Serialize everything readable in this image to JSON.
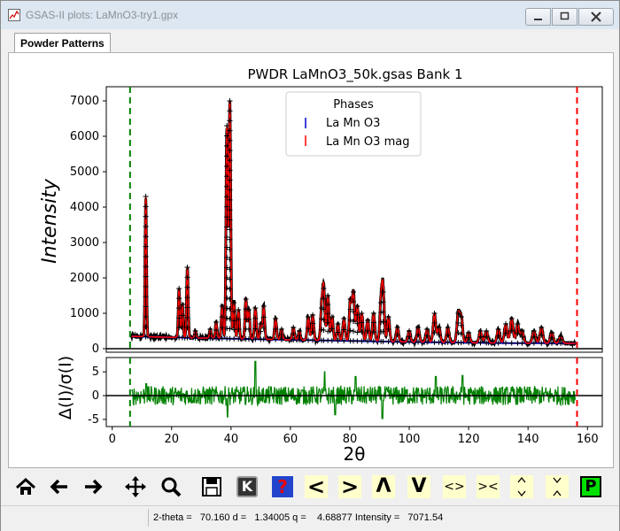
{
  "window": {
    "title": "GSAS-II plots: LaMnO3-try1.gpx"
  },
  "tabs": [
    {
      "label": "Powder Patterns"
    }
  ],
  "plot": {
    "title": "PWDR LaMnO3_50k.gsas Bank 1",
    "ylabel_top": "Intensity",
    "ylabel_bottom": "Δ(I)/σ(I)",
    "xlabel": "2θ",
    "legend": {
      "title": "Phases",
      "entries": [
        {
          "label": "La Mn O3",
          "color": "#0000cc"
        },
        {
          "label": "La Mn O3 mag",
          "color": "#ff0000"
        }
      ]
    }
  },
  "chart_data": [
    {
      "type": "line",
      "title": "PWDR LaMnO3_50k.gsas Bank 1",
      "xlabel": "2θ",
      "ylabel": "Intensity",
      "xlim": [
        -2,
        165
      ],
      "ylim": [
        -100,
        7400
      ],
      "xticks": [
        0,
        20,
        40,
        60,
        80,
        100,
        120,
        140,
        160
      ],
      "yticks": [
        0,
        1000,
        2000,
        3000,
        4000,
        5000,
        6000,
        7000
      ],
      "markers": {
        "green_dashed_x": 6,
        "red_dashed_x": 156.5
      },
      "legend_position": "top-center",
      "background": {
        "x": [
          6,
          30,
          60,
          100,
          130,
          157
        ],
        "y": [
          350,
          300,
          250,
          190,
          160,
          150
        ]
      },
      "peaks": [
        {
          "x": 11.3,
          "y": 4300
        },
        {
          "x": 22.5,
          "y": 1700
        },
        {
          "x": 23.6,
          "y": 1250
        },
        {
          "x": 25.3,
          "y": 2300
        },
        {
          "x": 28,
          "y": 500
        },
        {
          "x": 33,
          "y": 550
        },
        {
          "x": 35,
          "y": 750
        },
        {
          "x": 37,
          "y": 1200
        },
        {
          "x": 38.6,
          "y": 6300
        },
        {
          "x": 39.6,
          "y": 7000
        },
        {
          "x": 41,
          "y": 1300
        },
        {
          "x": 42.5,
          "y": 1100
        },
        {
          "x": 45,
          "y": 1400
        },
        {
          "x": 46,
          "y": 1100
        },
        {
          "x": 48.2,
          "y": 1150
        },
        {
          "x": 50,
          "y": 700
        },
        {
          "x": 51,
          "y": 1200
        },
        {
          "x": 55,
          "y": 850
        },
        {
          "x": 57,
          "y": 550
        },
        {
          "x": 61,
          "y": 600
        },
        {
          "x": 63,
          "y": 500
        },
        {
          "x": 66,
          "y": 900
        },
        {
          "x": 67.5,
          "y": 950
        },
        {
          "x": 70.5,
          "y": 1150
        },
        {
          "x": 71.2,
          "y": 1700
        },
        {
          "x": 72.6,
          "y": 1500
        },
        {
          "x": 74,
          "y": 900
        },
        {
          "x": 76,
          "y": 700
        },
        {
          "x": 78,
          "y": 850
        },
        {
          "x": 80.2,
          "y": 1400
        },
        {
          "x": 81.2,
          "y": 1600
        },
        {
          "x": 82.5,
          "y": 1200
        },
        {
          "x": 84,
          "y": 1000
        },
        {
          "x": 86,
          "y": 800
        },
        {
          "x": 88,
          "y": 1000
        },
        {
          "x": 90.5,
          "y": 1300
        },
        {
          "x": 91.2,
          "y": 1600
        },
        {
          "x": 93,
          "y": 900
        },
        {
          "x": 96,
          "y": 600
        },
        {
          "x": 100,
          "y": 500
        },
        {
          "x": 103,
          "y": 600
        },
        {
          "x": 106,
          "y": 550
        },
        {
          "x": 108.5,
          "y": 1000
        },
        {
          "x": 110,
          "y": 600
        },
        {
          "x": 113,
          "y": 600
        },
        {
          "x": 116.5,
          "y": 1000
        },
        {
          "x": 117.5,
          "y": 900
        },
        {
          "x": 120,
          "y": 450
        },
        {
          "x": 124,
          "y": 500
        },
        {
          "x": 126,
          "y": 500
        },
        {
          "x": 130,
          "y": 550
        },
        {
          "x": 132.5,
          "y": 700
        },
        {
          "x": 134.5,
          "y": 850
        },
        {
          "x": 136.5,
          "y": 700
        },
        {
          "x": 138,
          "y": 500
        },
        {
          "x": 142,
          "y": 500
        },
        {
          "x": 144.5,
          "y": 600
        },
        {
          "x": 148,
          "y": 450
        },
        {
          "x": 151,
          "y": 350
        }
      ]
    },
    {
      "type": "line",
      "xlabel": "2θ",
      "ylabel": "Δ(I)/σ(I)",
      "xlim": [
        -2,
        165
      ],
      "ylim": [
        -6.5,
        8
      ],
      "yticks": [
        -5,
        0,
        5
      ],
      "zero_line": 0,
      "noise_amplitude": 2.0,
      "spikes": [
        {
          "x": 11.5,
          "y": 2.5
        },
        {
          "x": 38.8,
          "y": -4.5
        },
        {
          "x": 48.2,
          "y": 7.2
        },
        {
          "x": 71.5,
          "y": 5.0
        },
        {
          "x": 75,
          "y": -4.0
        },
        {
          "x": 82,
          "y": 4.0
        },
        {
          "x": 91,
          "y": -4.8
        },
        {
          "x": 109,
          "y": 4.0
        },
        {
          "x": 118,
          "y": 4.2
        }
      ]
    }
  ],
  "toolbar": {
    "icons": [
      "home-icon",
      "back-arrow-icon",
      "forward-arrow-icon",
      "pan-icon",
      "zoom-icon",
      "save-icon",
      "k-icon",
      "help-icon",
      "shift-left-icon",
      "shift-right-icon",
      "up-icon",
      "down-icon",
      "expand-x-icon",
      "contract-x-icon",
      "expand-y-icon",
      "contract-y-icon",
      "p-icon"
    ],
    "shift_left_label": "<",
    "shift_right_label": ">",
    "up_label": "Λ",
    "down_label": "V",
    "expand_x_label": "<>",
    "contract_x_label": "><",
    "k_label": "K",
    "help_label": "?",
    "p_label": "P"
  },
  "status": {
    "text": "2-theta =   70.160 d =   1.34005 q =    4.68877 Intensity =   7071.54"
  },
  "colors": {
    "observed": "#000000",
    "calculated": "#ff0000",
    "background_line": "#0000cc",
    "difference": "#008000",
    "low_limit": "#008000",
    "high_limit": "#ff0000"
  }
}
